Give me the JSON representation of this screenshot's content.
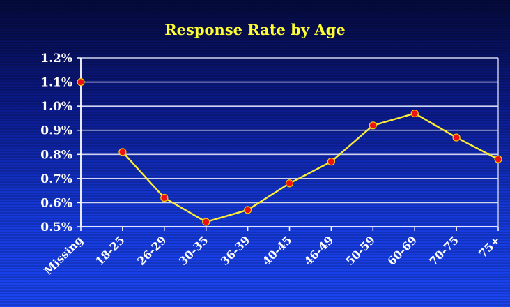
{
  "colors": {
    "line": "#ffee33",
    "marker_fill": "#ee1111",
    "marker_stroke": "#ffcc00",
    "grid": "#d0d4ee",
    "axis": "#ffffff",
    "title": "#ffff33"
  },
  "chart_data": {
    "type": "line",
    "title": "Response Rate by Age",
    "xlabel": "",
    "ylabel": "",
    "ylim": [
      0.5,
      1.2
    ],
    "y_ticks": [
      0.5,
      0.6,
      0.7,
      0.8,
      0.9,
      1.0,
      1.1,
      1.2
    ],
    "y_tick_labels": [
      "0.5%",
      "0.6%",
      "0.7%",
      "0.8%",
      "0.9%",
      "1.0%",
      "1.1%",
      "1.2%"
    ],
    "y_unit": "%",
    "grid": true,
    "legend": "none",
    "categories": [
      "Missing",
      "18-25",
      "26-29",
      "30-35",
      "36-39",
      "40-45",
      "46-49",
      "50-59",
      "60-69",
      "70-75",
      "75+"
    ],
    "series": [
      {
        "values": [
          1.1,
          0.81,
          0.62,
          0.52,
          0.57,
          0.68,
          0.77,
          0.92,
          0.97,
          0.87,
          0.78
        ],
        "connected": [
          false,
          true,
          true,
          true,
          true,
          true,
          true,
          true,
          true,
          true,
          true
        ]
      }
    ]
  }
}
